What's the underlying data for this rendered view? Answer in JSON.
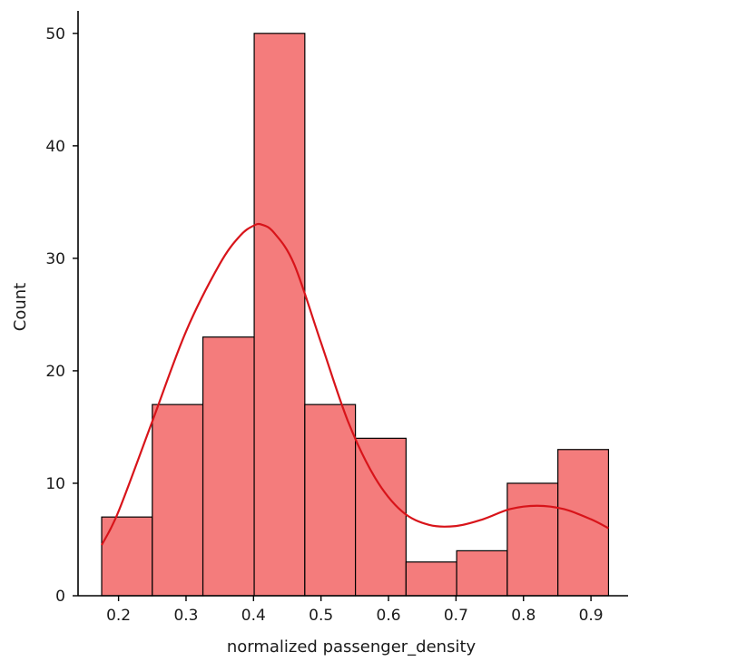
{
  "chart_data": {
    "type": "bar",
    "subtype": "histogram_with_kde",
    "xlabel": "normalized passenger_density",
    "ylabel": "Count",
    "xlim": [
      0.14,
      0.955
    ],
    "ylim": [
      0,
      52
    ],
    "x_ticks": [
      0.2,
      0.3,
      0.4,
      0.5,
      0.6,
      0.7,
      0.8,
      0.9
    ],
    "x_tick_labels": [
      "0.2",
      "0.3",
      "0.4",
      "0.5",
      "0.6",
      "0.7",
      "0.8",
      "0.9"
    ],
    "y_ticks": [
      0,
      10,
      20,
      30,
      40,
      50
    ],
    "y_tick_labels": [
      "0",
      "10",
      "20",
      "30",
      "40",
      "50"
    ],
    "bins": [
      {
        "start": 0.175,
        "end": 0.25,
        "count": 7
      },
      {
        "start": 0.25,
        "end": 0.325,
        "count": 17
      },
      {
        "start": 0.325,
        "end": 0.401,
        "count": 23
      },
      {
        "start": 0.401,
        "end": 0.476,
        "count": 50
      },
      {
        "start": 0.476,
        "end": 0.551,
        "count": 17
      },
      {
        "start": 0.551,
        "end": 0.626,
        "count": 14
      },
      {
        "start": 0.626,
        "end": 0.701,
        "count": 3
      },
      {
        "start": 0.701,
        "end": 0.776,
        "count": 4
      },
      {
        "start": 0.776,
        "end": 0.851,
        "count": 10
      },
      {
        "start": 0.851,
        "end": 0.926,
        "count": 13
      }
    ],
    "kde": {
      "x": [
        0.175,
        0.2,
        0.25,
        0.3,
        0.35,
        0.38,
        0.4,
        0.412,
        0.43,
        0.46,
        0.5,
        0.54,
        0.58,
        0.62,
        0.66,
        0.7,
        0.74,
        0.78,
        0.82,
        0.86,
        0.9,
        0.926
      ],
      "y": [
        4.5,
        7.5,
        15.5,
        23.5,
        29.5,
        32.0,
        32.9,
        33.0,
        32.3,
        29.5,
        22.5,
        15.5,
        10.5,
        7.5,
        6.3,
        6.2,
        6.8,
        7.7,
        8.0,
        7.7,
        6.8,
        6.0
      ]
    },
    "colors": {
      "bar_fill": "#f47c7c",
      "bar_edge": "#000000",
      "kde_line": "#d8141a"
    },
    "grid": false,
    "legend": "none"
  }
}
